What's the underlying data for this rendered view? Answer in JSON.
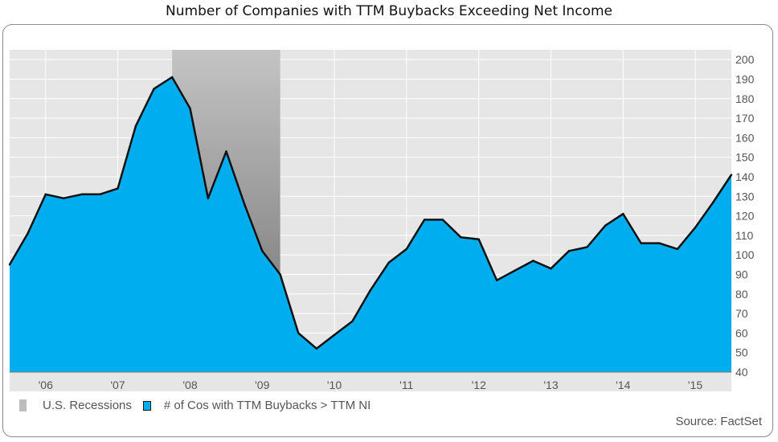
{
  "chart_data": {
    "type": "area",
    "title": "Number of Companies with TTM Buybacks Exceeding Net Income",
    "xlabel": "",
    "ylabel": "",
    "ylim": [
      40,
      205
    ],
    "y_ticks": [
      40,
      50,
      60,
      70,
      80,
      90,
      100,
      110,
      120,
      130,
      140,
      150,
      160,
      170,
      180,
      190,
      200
    ],
    "y_axis_side": "right",
    "x_range": [
      "2005-09-30",
      "2015-09-30"
    ],
    "x_tick_labels": [
      {
        "label": "'06",
        "date": "2006-03-31"
      },
      {
        "label": "'07",
        "date": "2007-03-31"
      },
      {
        "label": "'08",
        "date": "2008-03-31"
      },
      {
        "label": "'09",
        "date": "2009-03-31"
      },
      {
        "label": "'10",
        "date": "2010-03-31"
      },
      {
        "label": "'11",
        "date": "2011-03-31"
      },
      {
        "label": "'12",
        "date": "2012-03-31"
      },
      {
        "label": "'13",
        "date": "2013-03-31"
      },
      {
        "label": "'14",
        "date": "2014-03-31"
      },
      {
        "label": "'15",
        "date": "2015-03-31"
      }
    ],
    "recession": {
      "start": "2007-12-31",
      "end": "2009-06-30"
    },
    "grid": true,
    "legend_position": "bottom-left",
    "series": [
      {
        "name": "# of Cos with TTM Buybacks > TTM NI",
        "color": "#00adef",
        "x": [
          "2005-09-30",
          "2005-12-31",
          "2006-03-31",
          "2006-06-30",
          "2006-09-30",
          "2006-12-31",
          "2007-03-31",
          "2007-06-30",
          "2007-09-30",
          "2007-12-31",
          "2008-03-31",
          "2008-06-30",
          "2008-09-30",
          "2008-12-31",
          "2009-03-31",
          "2009-06-30",
          "2009-09-30",
          "2009-12-31",
          "2010-03-31",
          "2010-06-30",
          "2010-09-30",
          "2010-12-31",
          "2011-03-31",
          "2011-06-30",
          "2011-09-30",
          "2011-12-31",
          "2012-03-31",
          "2012-06-30",
          "2012-09-30",
          "2012-12-31",
          "2013-03-31",
          "2013-06-30",
          "2013-09-30",
          "2013-12-31",
          "2014-03-31",
          "2014-06-30",
          "2014-09-30",
          "2014-12-31",
          "2015-03-31",
          "2015-06-30",
          "2015-09-30"
        ],
        "values": [
          95,
          111,
          131,
          129,
          131,
          131,
          134,
          166,
          185,
          191,
          175,
          129,
          153,
          126,
          102,
          90,
          60,
          52,
          59,
          66,
          82,
          96,
          103,
          118,
          118,
          109,
          108,
          87,
          92,
          97,
          93,
          102,
          104,
          115,
          121,
          106,
          106,
          103,
          114,
          127,
          141
        ]
      }
    ],
    "legend": {
      "recession_label": "U.S. Recessions",
      "series_label": "# of Cos with TTM Buybacks > TTM NI"
    },
    "source": "Source: FactSet",
    "colors": {
      "area": "#00adef",
      "line": "#111111",
      "recession": "#9a9a9a",
      "plot_background": "#e6e6e6",
      "grid": "#ffffff"
    }
  }
}
